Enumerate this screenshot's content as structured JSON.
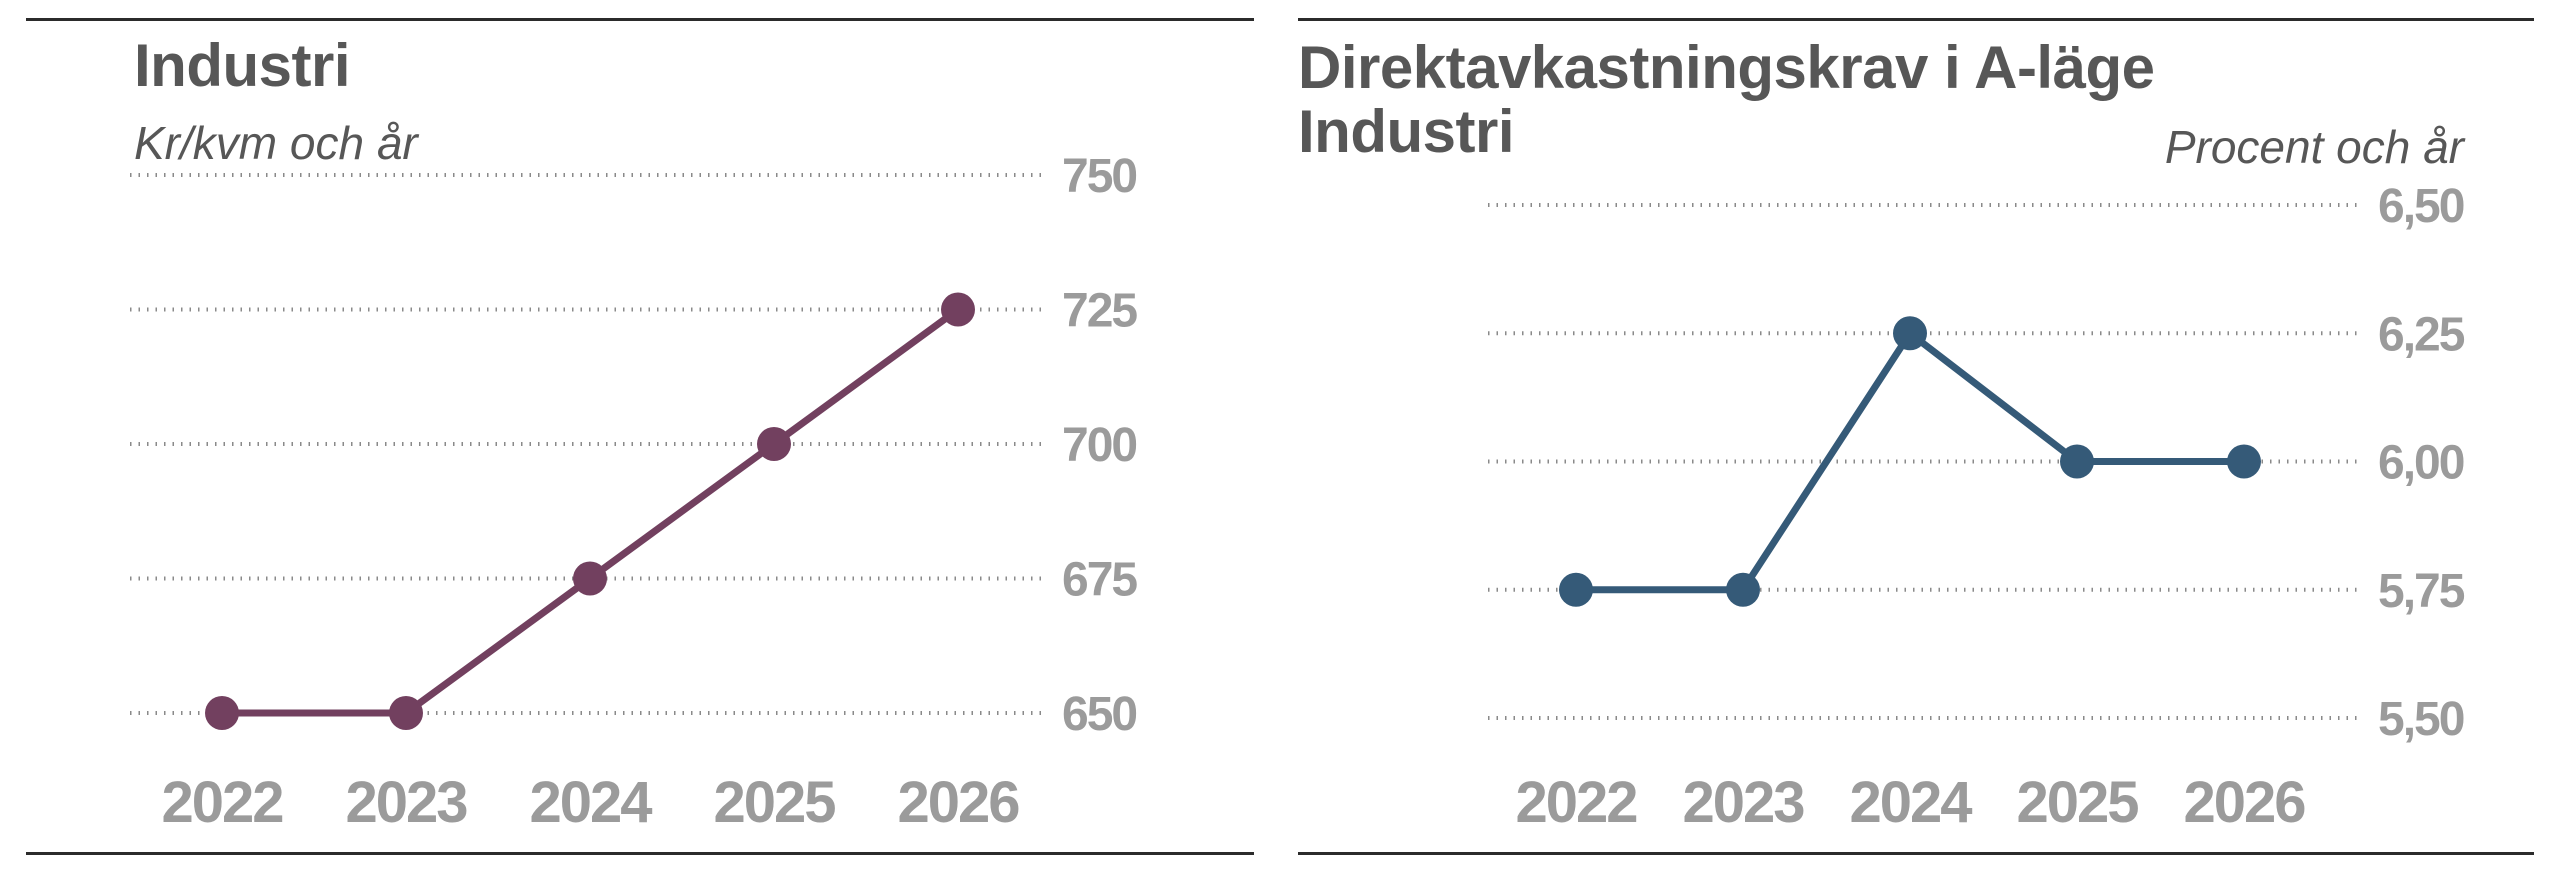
{
  "chart_data": [
    {
      "type": "line",
      "title": "Industri",
      "subtitle": "Kr/kvm och år",
      "xlabel": "",
      "ylabel": "Kr/kvm och år",
      "categories": [
        "2022",
        "2023",
        "2024",
        "2025",
        "2026"
      ],
      "series": [
        {
          "name": "Industri",
          "values": [
            650,
            650,
            675,
            700,
            725
          ],
          "color": "#72405f"
        }
      ],
      "ylim": [
        650,
        750
      ],
      "yticks": [
        750,
        725,
        700,
        675,
        650
      ],
      "ytick_labels": [
        "750",
        "725",
        "700",
        "675",
        "650"
      ],
      "grid": true,
      "legend": "none"
    },
    {
      "type": "line",
      "title": "Direktavkastningskrav i A-läge",
      "title_line2": "Industri",
      "subtitle": "Procent och år",
      "xlabel": "",
      "ylabel": "Procent och år",
      "categories": [
        "2022",
        "2023",
        "2024",
        "2025",
        "2026"
      ],
      "series": [
        {
          "name": "Direktavkastningskrav i A-läge Industri",
          "values": [
            5.75,
            5.75,
            6.25,
            6.0,
            6.0
          ],
          "color": "#355a78"
        }
      ],
      "ylim": [
        5.5,
        6.5
      ],
      "yticks": [
        6.5,
        6.25,
        6.0,
        5.75,
        5.5
      ],
      "ytick_labels": [
        "6,50",
        "6,25",
        "6,00",
        "5,75",
        "5,50"
      ],
      "grid": true,
      "legend": "none"
    }
  ]
}
